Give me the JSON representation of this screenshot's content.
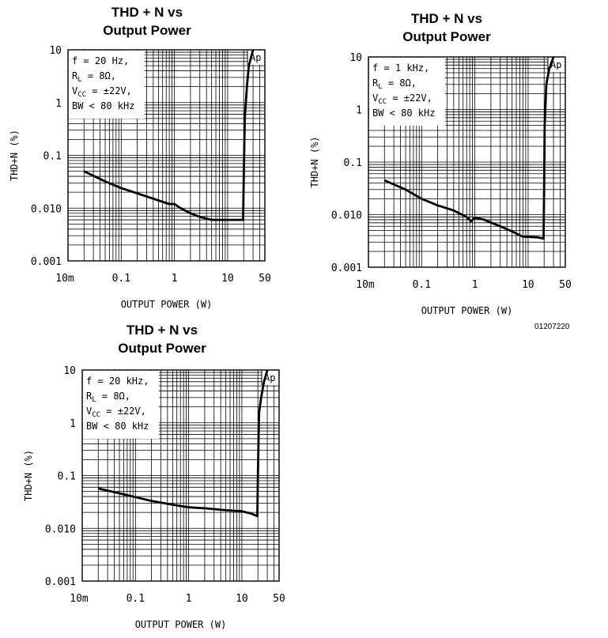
{
  "figure_id": "01207220",
  "chart_data": [
    {
      "type": "line",
      "title_lines": [
        "THD + N vs",
        "Output Power"
      ],
      "xlabel": "OUTPUT POWER (W)",
      "ylabel": "THD+N (%)",
      "x_scale": "log",
      "y_scale": "log",
      "xlim": [
        0.01,
        50
      ],
      "ylim": [
        0.001,
        10
      ],
      "x_ticks": [
        "10m",
        "0.1",
        "1",
        "10",
        "50"
      ],
      "y_ticks": [
        "0.001",
        "0.010",
        "0.1",
        "1",
        "10"
      ],
      "grid": true,
      "conditions": [
        {
          "text": "f = 20 Hz,"
        },
        {
          "text": "R",
          "sub": "L",
          "rest": " = 8Ω,"
        },
        {
          "text": "V",
          "sub": "CC",
          "rest": " = ±22V,"
        },
        {
          "text": "BW < 80 kHz"
        }
      ],
      "annotation": "Ap",
      "series": [
        {
          "x": [
            0.02,
            0.05,
            0.1,
            0.2,
            0.5,
            0.8,
            1.0,
            1.3,
            2,
            3,
            5,
            10,
            15,
            19.5,
            20,
            21,
            23,
            25,
            30
          ],
          "y": [
            0.05,
            0.032,
            0.024,
            0.019,
            0.014,
            0.012,
            0.012,
            0.01,
            0.008,
            0.0068,
            0.006,
            0.006,
            0.006,
            0.006,
            0.03,
            0.5,
            2.0,
            5.0,
            10
          ]
        }
      ]
    },
    {
      "type": "line",
      "title_lines": [
        "THD + N vs",
        "Output Power"
      ],
      "xlabel": "OUTPUT POWER (W)",
      "ylabel": "THD+N (%)",
      "x_scale": "log",
      "y_scale": "log",
      "xlim": [
        0.01,
        50
      ],
      "ylim": [
        0.001,
        10
      ],
      "x_ticks": [
        "10m",
        "0.1",
        "1",
        "10",
        "50"
      ],
      "y_ticks": [
        "0.001",
        "0.010",
        "0.1",
        "1",
        "10"
      ],
      "grid": true,
      "conditions": [
        {
          "text": "f = 1 kHz,"
        },
        {
          "text": "R",
          "sub": "L",
          "rest": " = 8Ω,"
        },
        {
          "text": "V",
          "sub": "CC",
          "rest": " = ±22V,"
        },
        {
          "text": "BW < 80 kHz"
        }
      ],
      "annotation": "Ap",
      "series": [
        {
          "x": [
            0.02,
            0.05,
            0.1,
            0.2,
            0.4,
            0.7,
            0.85,
            1.0,
            1.5,
            3,
            5,
            8,
            15,
            19.5,
            20,
            20.5,
            22,
            25,
            30
          ],
          "y": [
            0.045,
            0.03,
            0.02,
            0.015,
            0.012,
            0.009,
            0.0075,
            0.0088,
            0.008,
            0.006,
            0.0048,
            0.0038,
            0.0037,
            0.0035,
            0.03,
            0.5,
            3.0,
            6.0,
            10
          ]
        }
      ]
    },
    {
      "type": "line",
      "title_lines": [
        "THD + N vs",
        "Output Power"
      ],
      "xlabel": "OUTPUT POWER (W)",
      "ylabel": "THD+N (%)",
      "x_scale": "log",
      "y_scale": "log",
      "xlim": [
        0.01,
        50
      ],
      "ylim": [
        0.001,
        10
      ],
      "x_ticks": [
        "10m",
        "0.1",
        "1",
        "10",
        "50"
      ],
      "y_ticks": [
        "0.001",
        "0.010",
        "0.1",
        "1",
        "10"
      ],
      "grid": true,
      "conditions": [
        {
          "text": "f = 20 kHz,"
        },
        {
          "text": "R",
          "sub": "L",
          "rest": " = 8Ω,"
        },
        {
          "text": "V",
          "sub": "CC",
          "rest": " = ±22V,"
        },
        {
          "text": "BW < 80 kHz"
        }
      ],
      "annotation": "Ap",
      "series": [
        {
          "x": [
            0.02,
            0.05,
            0.1,
            0.2,
            0.5,
            1,
            2,
            5,
            10,
            15,
            19.5,
            20,
            21,
            23,
            26,
            30
          ],
          "y": [
            0.057,
            0.046,
            0.039,
            0.033,
            0.028,
            0.025,
            0.024,
            0.022,
            0.021,
            0.019,
            0.017,
            0.1,
            1.5,
            3.0,
            6.0,
            10
          ]
        }
      ]
    }
  ]
}
